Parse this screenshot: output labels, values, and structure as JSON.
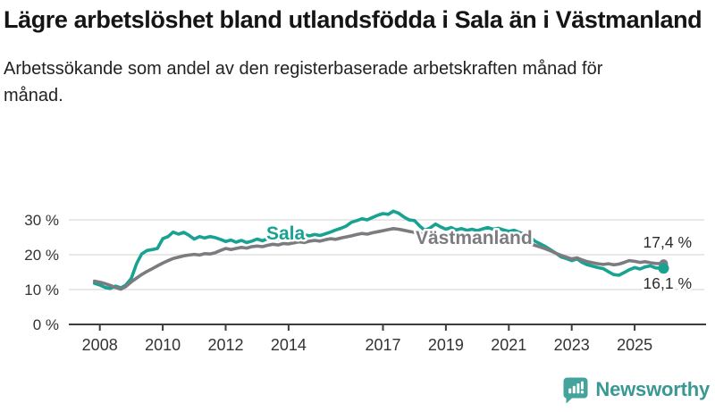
{
  "header": {
    "title": "Lägre arbetslöshet bland utlandsfödda i Sala än i Västmanland",
    "subtitle": "Arbetssökande som andel av den registerbaserade arbetskraften månad för månad."
  },
  "footer": {
    "brand": "Newsworthy",
    "logo_icon": "speech-bubble-bar-chart-icon",
    "brand_color": "#3A9894"
  },
  "colors": {
    "sala": "#18A292",
    "vastmanland": "#7C7C80",
    "gridline": "#d9d9d9",
    "axis": "#3d3d3d",
    "tick_text": "#333333",
    "end_label_text": "#2b2b2b"
  },
  "chart_data": {
    "type": "line",
    "title": "Lägre arbetslöshet bland utlandsfödda i Sala än i Västmanland",
    "subtitle": "Arbetssökande som andel av den registerbaserade arbetskraften månad för månad.",
    "grid": "horizontal",
    "legend": "inline-labels",
    "y_axis": {
      "range": [
        0,
        35
      ],
      "ticks": [
        {
          "v": 0,
          "label": "0 %"
        },
        {
          "v": 10,
          "label": "10 %"
        },
        {
          "v": 20,
          "label": "20 %"
        },
        {
          "v": 30,
          "label": "30 %"
        }
      ]
    },
    "x_axis": {
      "range": [
        2007.7,
        2026.3
      ],
      "ticks": [
        {
          "v": 2008,
          "label": "2008"
        },
        {
          "v": 2010,
          "label": "2010"
        },
        {
          "v": 2012,
          "label": "2012"
        },
        {
          "v": 2014,
          "label": "2014"
        },
        {
          "v": 2017,
          "label": "2017"
        },
        {
          "v": 2019,
          "label": "2019"
        },
        {
          "v": 2021,
          "label": "2021"
        },
        {
          "v": 2023,
          "label": "2023"
        },
        {
          "v": 2025,
          "label": "2025"
        }
      ]
    },
    "series": [
      {
        "name": "Sala",
        "color": "#18A292",
        "end_value": 16.1,
        "end_value_label": "16,1 %",
        "points": [
          [
            2007.83,
            11.8
          ],
          [
            2008.0,
            11.3
          ],
          [
            2008.17,
            10.6
          ],
          [
            2008.33,
            10.3
          ],
          [
            2008.5,
            11.0
          ],
          [
            2008.67,
            10.5
          ],
          [
            2008.83,
            11.3
          ],
          [
            2009.0,
            13.2
          ],
          [
            2009.17,
            17.5
          ],
          [
            2009.33,
            20.2
          ],
          [
            2009.5,
            21.2
          ],
          [
            2009.67,
            21.5
          ],
          [
            2009.83,
            21.8
          ],
          [
            2010.0,
            24.6
          ],
          [
            2010.17,
            25.2
          ],
          [
            2010.33,
            26.5
          ],
          [
            2010.5,
            25.9
          ],
          [
            2010.67,
            26.4
          ],
          [
            2010.83,
            25.6
          ],
          [
            2011.0,
            24.5
          ],
          [
            2011.17,
            25.2
          ],
          [
            2011.33,
            24.8
          ],
          [
            2011.5,
            25.2
          ],
          [
            2011.67,
            24.9
          ],
          [
            2011.83,
            24.4
          ],
          [
            2012.0,
            23.8
          ],
          [
            2012.17,
            24.2
          ],
          [
            2012.33,
            23.6
          ],
          [
            2012.5,
            24.1
          ],
          [
            2012.67,
            23.5
          ],
          [
            2012.83,
            23.9
          ],
          [
            2013.0,
            24.5
          ],
          [
            2013.17,
            24.0
          ],
          [
            2013.33,
            24.6
          ],
          [
            2013.5,
            24.9
          ],
          [
            2013.67,
            24.5
          ],
          [
            2013.83,
            25.0
          ],
          [
            2014.0,
            25.2
          ],
          [
            2014.17,
            24.7
          ],
          [
            2014.33,
            25.1
          ],
          [
            2014.5,
            25.7
          ],
          [
            2014.67,
            25.4
          ],
          [
            2014.83,
            25.8
          ],
          [
            2015.0,
            25.5
          ],
          [
            2015.17,
            26.0
          ],
          [
            2015.33,
            26.5
          ],
          [
            2015.5,
            27.1
          ],
          [
            2015.67,
            27.6
          ],
          [
            2015.83,
            28.2
          ],
          [
            2016.0,
            29.3
          ],
          [
            2016.17,
            29.8
          ],
          [
            2016.33,
            30.3
          ],
          [
            2016.5,
            30.0
          ],
          [
            2016.67,
            30.7
          ],
          [
            2016.83,
            31.3
          ],
          [
            2017.0,
            31.8
          ],
          [
            2017.17,
            31.6
          ],
          [
            2017.33,
            32.5
          ],
          [
            2017.5,
            31.9
          ],
          [
            2017.67,
            30.8
          ],
          [
            2017.83,
            30.0
          ],
          [
            2018.0,
            29.8
          ],
          [
            2018.17,
            28.2
          ],
          [
            2018.33,
            27.0
          ],
          [
            2018.5,
            27.7
          ],
          [
            2018.67,
            28.8
          ],
          [
            2018.83,
            28.0
          ],
          [
            2019.0,
            27.3
          ],
          [
            2019.17,
            27.8
          ],
          [
            2019.33,
            27.1
          ],
          [
            2019.5,
            27.5
          ],
          [
            2019.67,
            27.0
          ],
          [
            2019.83,
            27.3
          ],
          [
            2020.0,
            26.9
          ],
          [
            2020.17,
            27.4
          ],
          [
            2020.33,
            27.8
          ],
          [
            2020.5,
            27.3
          ],
          [
            2020.67,
            27.6
          ],
          [
            2020.83,
            27.1
          ],
          [
            2021.0,
            26.7
          ],
          [
            2021.17,
            27.0
          ],
          [
            2021.33,
            26.4
          ],
          [
            2021.5,
            25.9
          ],
          [
            2021.67,
            25.1
          ],
          [
            2021.83,
            23.9
          ],
          [
            2022.0,
            23.1
          ],
          [
            2022.17,
            22.3
          ],
          [
            2022.33,
            21.4
          ],
          [
            2022.5,
            20.4
          ],
          [
            2022.67,
            19.3
          ],
          [
            2022.83,
            18.9
          ],
          [
            2023.0,
            18.3
          ],
          [
            2023.17,
            18.8
          ],
          [
            2023.33,
            17.8
          ],
          [
            2023.5,
            17.1
          ],
          [
            2023.67,
            16.7
          ],
          [
            2023.83,
            16.3
          ],
          [
            2024.0,
            16.0
          ],
          [
            2024.17,
            15.1
          ],
          [
            2024.33,
            14.3
          ],
          [
            2024.5,
            14.1
          ],
          [
            2024.67,
            14.9
          ],
          [
            2024.83,
            15.7
          ],
          [
            2025.0,
            16.3
          ],
          [
            2025.17,
            15.9
          ],
          [
            2025.33,
            16.5
          ],
          [
            2025.5,
            16.8
          ],
          [
            2025.67,
            16.2
          ],
          [
            2025.92,
            16.1
          ]
        ]
      },
      {
        "name": "Västmanland",
        "color": "#7C7C80",
        "end_value": 17.4,
        "end_value_label": "17,4 %",
        "points": [
          [
            2007.83,
            12.4
          ],
          [
            2008.0,
            12.1
          ],
          [
            2008.17,
            11.7
          ],
          [
            2008.33,
            11.2
          ],
          [
            2008.5,
            10.6
          ],
          [
            2008.67,
            10.1
          ],
          [
            2008.83,
            10.9
          ],
          [
            2009.0,
            12.2
          ],
          [
            2009.17,
            13.3
          ],
          [
            2009.33,
            14.3
          ],
          [
            2009.5,
            15.2
          ],
          [
            2009.67,
            16.0
          ],
          [
            2009.83,
            16.8
          ],
          [
            2010.0,
            17.6
          ],
          [
            2010.17,
            18.3
          ],
          [
            2010.33,
            18.9
          ],
          [
            2010.5,
            19.3
          ],
          [
            2010.67,
            19.7
          ],
          [
            2010.83,
            19.9
          ],
          [
            2011.0,
            20.1
          ],
          [
            2011.17,
            19.9
          ],
          [
            2011.33,
            20.3
          ],
          [
            2011.5,
            20.2
          ],
          [
            2011.67,
            20.6
          ],
          [
            2011.83,
            21.2
          ],
          [
            2012.0,
            21.8
          ],
          [
            2012.17,
            21.5
          ],
          [
            2012.33,
            21.8
          ],
          [
            2012.5,
            22.1
          ],
          [
            2012.67,
            21.9
          ],
          [
            2012.83,
            22.3
          ],
          [
            2013.0,
            22.5
          ],
          [
            2013.17,
            22.3
          ],
          [
            2013.33,
            22.7
          ],
          [
            2013.5,
            23.0
          ],
          [
            2013.67,
            22.8
          ],
          [
            2013.83,
            23.2
          ],
          [
            2014.0,
            23.1
          ],
          [
            2014.17,
            23.4
          ],
          [
            2014.33,
            23.7
          ],
          [
            2014.5,
            23.5
          ],
          [
            2014.67,
            23.9
          ],
          [
            2014.83,
            24.1
          ],
          [
            2015.0,
            23.9
          ],
          [
            2015.17,
            24.3
          ],
          [
            2015.33,
            24.6
          ],
          [
            2015.5,
            24.4
          ],
          [
            2015.67,
            24.8
          ],
          [
            2015.83,
            25.1
          ],
          [
            2016.0,
            25.4
          ],
          [
            2016.17,
            25.8
          ],
          [
            2016.33,
            26.1
          ],
          [
            2016.5,
            25.9
          ],
          [
            2016.67,
            26.3
          ],
          [
            2016.83,
            26.6
          ],
          [
            2017.0,
            26.9
          ],
          [
            2017.17,
            27.2
          ],
          [
            2017.33,
            27.5
          ],
          [
            2017.5,
            27.3
          ],
          [
            2017.67,
            27.0
          ],
          [
            2017.83,
            26.7
          ],
          [
            2018.0,
            26.4
          ],
          [
            2018.17,
            26.1
          ],
          [
            2018.33,
            25.8
          ],
          [
            2018.5,
            26.0
          ],
          [
            2018.67,
            25.7
          ],
          [
            2018.83,
            25.5
          ],
          [
            2019.0,
            25.3
          ],
          [
            2019.17,
            25.5
          ],
          [
            2019.33,
            25.2
          ],
          [
            2019.5,
            25.0
          ],
          [
            2019.67,
            24.8
          ],
          [
            2019.83,
            24.6
          ],
          [
            2020.0,
            24.4
          ],
          [
            2020.17,
            24.9
          ],
          [
            2020.33,
            25.3
          ],
          [
            2020.5,
            25.1
          ],
          [
            2020.67,
            25.4
          ],
          [
            2020.83,
            25.2
          ],
          [
            2021.0,
            24.9
          ],
          [
            2021.17,
            24.6
          ],
          [
            2021.33,
            24.2
          ],
          [
            2021.5,
            23.7
          ],
          [
            2021.67,
            23.2
          ],
          [
            2021.83,
            22.7
          ],
          [
            2022.0,
            22.2
          ],
          [
            2022.17,
            21.7
          ],
          [
            2022.33,
            21.1
          ],
          [
            2022.5,
            20.4
          ],
          [
            2022.67,
            19.8
          ],
          [
            2022.83,
            19.3
          ],
          [
            2023.0,
            18.8
          ],
          [
            2023.17,
            19.1
          ],
          [
            2023.33,
            18.5
          ],
          [
            2023.5,
            18.0
          ],
          [
            2023.67,
            17.7
          ],
          [
            2023.83,
            17.4
          ],
          [
            2024.0,
            17.2
          ],
          [
            2024.17,
            17.4
          ],
          [
            2024.33,
            17.1
          ],
          [
            2024.5,
            17.3
          ],
          [
            2024.67,
            17.8
          ],
          [
            2024.83,
            18.3
          ],
          [
            2025.0,
            18.1
          ],
          [
            2025.17,
            17.8
          ],
          [
            2025.33,
            18.0
          ],
          [
            2025.5,
            17.7
          ],
          [
            2025.67,
            17.5
          ],
          [
            2025.92,
            17.4
          ]
        ]
      }
    ]
  }
}
